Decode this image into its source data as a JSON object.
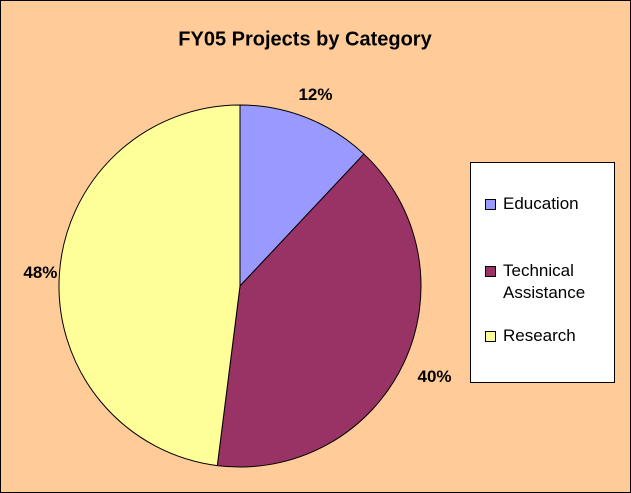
{
  "chart_data": {
    "type": "pie",
    "title": "FY05 Projects by Category",
    "categories": [
      "Education",
      "Technical Assistance",
      "Research"
    ],
    "values": [
      12,
      40,
      48
    ],
    "value_labels": [
      "12%",
      "40%",
      "48%"
    ],
    "colors": [
      "#9999ff",
      "#993366",
      "#ffff99"
    ],
    "legend": "right"
  }
}
